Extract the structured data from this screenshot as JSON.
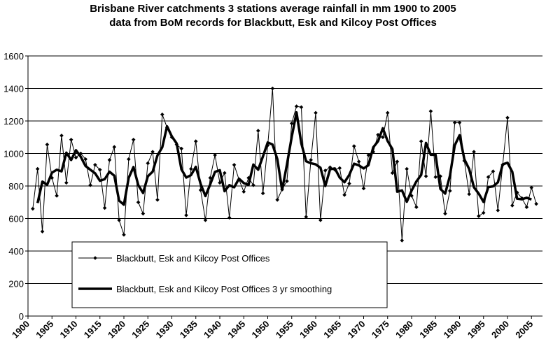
{
  "chart_data": {
    "type": "line",
    "title": [
      "Brisbane River catchments 3 stations average rainfall in mm 1900 to 2005",
      "data from BoM records for Blackbutt, Esk and Kilcoy  Post Offices"
    ],
    "x": [
      1901,
      1902,
      1903,
      1904,
      1905,
      1906,
      1907,
      1908,
      1909,
      1910,
      1911,
      1912,
      1913,
      1914,
      1915,
      1916,
      1917,
      1918,
      1919,
      1920,
      1921,
      1922,
      1923,
      1924,
      1925,
      1926,
      1927,
      1928,
      1929,
      1930,
      1931,
      1932,
      1933,
      1934,
      1935,
      1936,
      1937,
      1938,
      1939,
      1940,
      1941,
      1942,
      1943,
      1944,
      1945,
      1946,
      1947,
      1948,
      1949,
      1950,
      1951,
      1952,
      1953,
      1954,
      1955,
      1956,
      1957,
      1958,
      1959,
      1960,
      1961,
      1962,
      1963,
      1964,
      1965,
      1966,
      1967,
      1968,
      1969,
      1970,
      1971,
      1972,
      1973,
      1974,
      1975,
      1976,
      1977,
      1978,
      1979,
      1980,
      1981,
      1982,
      1983,
      1984,
      1985,
      1986,
      1987,
      1988,
      1989,
      1990,
      1991,
      1992,
      1993,
      1994,
      1995,
      1996,
      1997,
      1998,
      1999,
      2000,
      2001,
      2002,
      2003,
      2004,
      2005,
      2006
    ],
    "series": [
      {
        "name": "Blackbutt, Esk and Kilcoy  Post Offices",
        "color": "#000000",
        "marker": "diamond",
        "values": [
          660,
          905,
          520,
          1055,
          850,
          740,
          1110,
          820,
          1085,
          975,
          1000,
          965,
          805,
          930,
          900,
          665,
          960,
          1040,
          590,
          500,
          965,
          1085,
          700,
          630,
          940,
          1010,
          715,
          1240,
          1160,
          1100,
          1055,
          1030,
          620,
          905,
          1075,
          775,
          590,
          850,
          990,
          820,
          880,
          605,
          930,
          840,
          765,
          850,
          805,
          1140,
          755,
          1050,
          1400,
          715,
          780,
          830,
          1185,
          1290,
          1285,
          610,
          960,
          1250,
          590,
          895,
          915,
          900,
          910,
          745,
          815,
          1045,
          950,
          785,
          990,
          1010,
          1115,
          1100,
          1250,
          880,
          950,
          465,
          905,
          740,
          670,
          1075,
          860,
          1260,
          855,
          860,
          630,
          770,
          1190,
          1190,
          955,
          750,
          1010,
          615,
          635,
          855,
          890,
          650,
          930,
          1220,
          680,
          760,
          725,
          670,
          790,
          690
        ]
      },
      {
        "name": "Blackbutt, Esk and Kilcoy  Post Offices 3 yr smoothing",
        "color": "#000000",
        "values": [
          null,
          695,
          827,
          808,
          882,
          900,
          890,
          1005,
          960,
          1020,
          980,
          923,
          900,
          878,
          832,
          842,
          888,
          863,
          710,
          685,
          850,
          917,
          805,
          757,
          860,
          888,
          988,
          1038,
          1167,
          1105,
          1062,
          902,
          852,
          867,
          918,
          813,
          738,
          810,
          887,
          897,
          768,
          805,
          792,
          845,
          818,
          807,
          932,
          900,
          982,
          1068,
          1055,
          965,
          775,
          932,
          1102,
          1253,
          1062,
          952,
          940,
          933,
          912,
          800,
          903,
          908,
          852,
          823,
          868,
          937,
          927,
          908,
          928,
          1038,
          1075,
          1155,
          1077,
          1027,
          765,
          773,
          703,
          772,
          828,
          868,
          1065,
          992,
          992,
          782,
          753,
          863,
          1050,
          1112,
          965,
          905,
          792,
          753,
          702,
          793,
          798,
          823,
          933,
          943,
          887,
          722,
          718,
          728,
          717,
          null
        ]
      }
    ],
    "xlim": [
      1900,
      2007.3
    ],
    "xticks": [
      1900,
      1905,
      1910,
      1915,
      1920,
      1925,
      1930,
      1935,
      1940,
      1945,
      1950,
      1955,
      1960,
      1965,
      1970,
      1975,
      1980,
      1985,
      1990,
      1995,
      2000,
      2005
    ],
    "ylim": [
      0,
      1600
    ],
    "yticks": [
      0,
      200,
      400,
      600,
      800,
      1000,
      1200,
      1400,
      1600
    ],
    "grid": true
  }
}
